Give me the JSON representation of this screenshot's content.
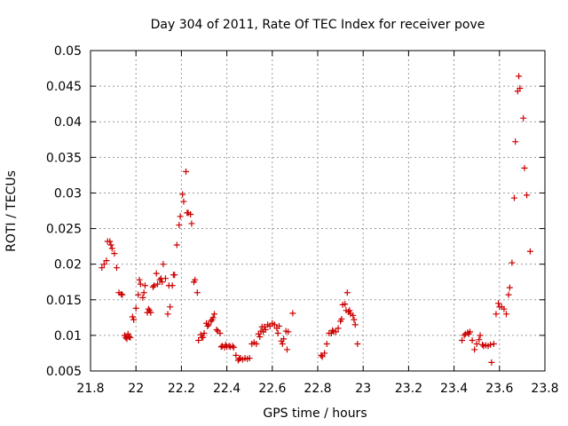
{
  "chart_data": {
    "type": "scatter",
    "title": "Day 304 of 2011, Rate Of TEC Index for receiver pove",
    "xlabel": "GPS time / hours",
    "ylabel": "ROTI / TECUs",
    "xlim": [
      21.8,
      23.8
    ],
    "ylim": [
      0.005,
      0.05
    ],
    "xticks": [
      21.8,
      22,
      22.2,
      22.4,
      22.6,
      22.8,
      23,
      23.2,
      23.4,
      23.6,
      23.8
    ],
    "xtick_labels": [
      "21.8",
      "22",
      "22.2",
      "22.4",
      "22.6",
      "22.8",
      "23",
      "23.2",
      "23.4",
      "23.6",
      "23.8"
    ],
    "yticks": [
      0.005,
      0.01,
      0.015,
      0.02,
      0.025,
      0.03,
      0.035,
      0.04,
      0.045,
      0.05
    ],
    "ytick_labels": [
      "0.005",
      "0.01",
      "0.015",
      "0.02",
      "0.025",
      "0.03",
      "0.035",
      "0.04",
      "0.045",
      "0.05"
    ],
    "grid": true,
    "marker": "+",
    "color": "#cc0000",
    "series": [
      {
        "name": "pove",
        "points": [
          [
            21.85,
            0.0195
          ],
          [
            21.86,
            0.02
          ],
          [
            21.87,
            0.0205
          ],
          [
            21.875,
            0.0232
          ],
          [
            21.885,
            0.0232
          ],
          [
            21.89,
            0.0227
          ],
          [
            21.895,
            0.0222
          ],
          [
            21.905,
            0.0215
          ],
          [
            21.915,
            0.0195
          ],
          [
            21.925,
            0.016
          ],
          [
            21.935,
            0.0158
          ],
          [
            21.94,
            0.0157
          ],
          [
            21.95,
            0.01
          ],
          [
            21.955,
            0.0097
          ],
          [
            21.96,
            0.0095
          ],
          [
            21.965,
            0.0102
          ],
          [
            21.97,
            0.0098
          ],
          [
            21.975,
            0.0097
          ],
          [
            21.985,
            0.0126
          ],
          [
            21.99,
            0.0122
          ],
          [
            22.0,
            0.0138
          ],
          [
            22.01,
            0.0157
          ],
          [
            22.015,
            0.0178
          ],
          [
            22.02,
            0.0172
          ],
          [
            22.03,
            0.0153
          ],
          [
            22.035,
            0.016
          ],
          [
            22.04,
            0.017
          ],
          [
            22.05,
            0.0132
          ],
          [
            22.055,
            0.0137
          ],
          [
            22.06,
            0.0135
          ],
          [
            22.065,
            0.0132
          ],
          [
            22.075,
            0.0168
          ],
          [
            22.08,
            0.017
          ],
          [
            22.09,
            0.0187
          ],
          [
            22.095,
            0.0172
          ],
          [
            22.105,
            0.0178
          ],
          [
            22.11,
            0.018
          ],
          [
            22.115,
            0.0175
          ],
          [
            22.12,
            0.02
          ],
          [
            22.13,
            0.018
          ],
          [
            22.14,
            0.013
          ],
          [
            22.145,
            0.017
          ],
          [
            22.15,
            0.014
          ],
          [
            22.16,
            0.017
          ],
          [
            22.165,
            0.0185
          ],
          [
            22.17,
            0.0185
          ],
          [
            22.18,
            0.0227
          ],
          [
            22.19,
            0.0255
          ],
          [
            22.195,
            0.0267
          ],
          [
            22.205,
            0.0298
          ],
          [
            22.21,
            0.0288
          ],
          [
            22.22,
            0.033
          ],
          [
            22.225,
            0.0272
          ],
          [
            22.23,
            0.0272
          ],
          [
            22.24,
            0.027
          ],
          [
            22.245,
            0.0257
          ],
          [
            22.255,
            0.0175
          ],
          [
            22.26,
            0.0178
          ],
          [
            22.27,
            0.016
          ],
          [
            22.275,
            0.0093
          ],
          [
            22.285,
            0.0101
          ],
          [
            22.29,
            0.0097
          ],
          [
            22.295,
            0.0097
          ],
          [
            22.3,
            0.0103
          ],
          [
            22.31,
            0.0117
          ],
          [
            22.315,
            0.0113
          ],
          [
            22.32,
            0.0115
          ],
          [
            22.33,
            0.012
          ],
          [
            22.335,
            0.0122
          ],
          [
            22.34,
            0.0125
          ],
          [
            22.345,
            0.013
          ],
          [
            22.355,
            0.0108
          ],
          [
            22.36,
            0.0106
          ],
          [
            22.37,
            0.0103
          ],
          [
            22.375,
            0.0084
          ],
          [
            22.38,
            0.0085
          ],
          [
            22.39,
            0.0083
          ],
          [
            22.395,
            0.0087
          ],
          [
            22.4,
            0.0084
          ],
          [
            22.41,
            0.0085
          ],
          [
            22.415,
            0.0084
          ],
          [
            22.425,
            0.0085
          ],
          [
            22.43,
            0.0083
          ],
          [
            22.44,
            0.0072
          ],
          [
            22.45,
            0.0065
          ],
          [
            22.455,
            0.0067
          ],
          [
            22.46,
            0.0068
          ],
          [
            22.47,
            0.0066
          ],
          [
            22.48,
            0.0068
          ],
          [
            22.49,
            0.0067
          ],
          [
            22.5,
            0.0068
          ],
          [
            22.51,
            0.0088
          ],
          [
            22.52,
            0.009
          ],
          [
            22.53,
            0.0088
          ],
          [
            22.54,
            0.0102
          ],
          [
            22.545,
            0.0098
          ],
          [
            22.55,
            0.0106
          ],
          [
            22.555,
            0.0112
          ],
          [
            22.56,
            0.0105
          ],
          [
            22.565,
            0.0112
          ],
          [
            22.57,
            0.0108
          ],
          [
            22.58,
            0.0115
          ],
          [
            22.59,
            0.0113
          ],
          [
            22.6,
            0.0117
          ],
          [
            22.61,
            0.0115
          ],
          [
            22.62,
            0.011
          ],
          [
            22.625,
            0.0103
          ],
          [
            22.63,
            0.0113
          ],
          [
            22.64,
            0.0092
          ],
          [
            22.645,
            0.0088
          ],
          [
            22.65,
            0.0095
          ],
          [
            22.66,
            0.0106
          ],
          [
            22.665,
            0.008
          ],
          [
            22.67,
            0.0105
          ],
          [
            22.69,
            0.0131
          ],
          [
            22.815,
            0.0072
          ],
          [
            22.82,
            0.007
          ],
          [
            22.83,
            0.0075
          ],
          [
            22.84,
            0.0088
          ],
          [
            22.85,
            0.0103
          ],
          [
            22.86,
            0.0103
          ],
          [
            22.865,
            0.0107
          ],
          [
            22.87,
            0.0105
          ],
          [
            22.88,
            0.0105
          ],
          [
            22.89,
            0.011
          ],
          [
            22.9,
            0.012
          ],
          [
            22.905,
            0.0123
          ],
          [
            22.91,
            0.0143
          ],
          [
            22.92,
            0.0144
          ],
          [
            22.925,
            0.0135
          ],
          [
            22.93,
            0.016
          ],
          [
            22.935,
            0.0133
          ],
          [
            22.94,
            0.0135
          ],
          [
            22.945,
            0.013
          ],
          [
            22.955,
            0.0128
          ],
          [
            22.96,
            0.0122
          ],
          [
            22.965,
            0.0115
          ],
          [
            22.975,
            0.0088
          ],
          [
            23.435,
            0.0093
          ],
          [
            23.445,
            0.01
          ],
          [
            23.45,
            0.0102
          ],
          [
            23.46,
            0.0104
          ],
          [
            23.465,
            0.0102
          ],
          [
            23.47,
            0.0105
          ],
          [
            23.48,
            0.0093
          ],
          [
            23.49,
            0.008
          ],
          [
            23.5,
            0.0088
          ],
          [
            23.51,
            0.0094
          ],
          [
            23.515,
            0.01
          ],
          [
            23.525,
            0.0087
          ],
          [
            23.53,
            0.0085
          ],
          [
            23.54,
            0.0086
          ],
          [
            23.55,
            0.0085
          ],
          [
            23.56,
            0.0087
          ],
          [
            23.565,
            0.0062
          ],
          [
            23.575,
            0.0088
          ],
          [
            23.585,
            0.013
          ],
          [
            23.595,
            0.0145
          ],
          [
            23.6,
            0.014
          ],
          [
            23.61,
            0.014
          ],
          [
            23.62,
            0.0137
          ],
          [
            23.63,
            0.013
          ],
          [
            23.64,
            0.0157
          ],
          [
            23.645,
            0.0167
          ],
          [
            23.655,
            0.0202
          ],
          [
            23.665,
            0.0293
          ],
          [
            23.67,
            0.0372
          ],
          [
            23.68,
            0.0443
          ],
          [
            23.685,
            0.0464
          ],
          [
            23.69,
            0.0447
          ],
          [
            23.705,
            0.0405
          ],
          [
            23.71,
            0.0335
          ],
          [
            23.72,
            0.0297
          ],
          [
            23.735,
            0.0218
          ]
        ]
      }
    ]
  }
}
